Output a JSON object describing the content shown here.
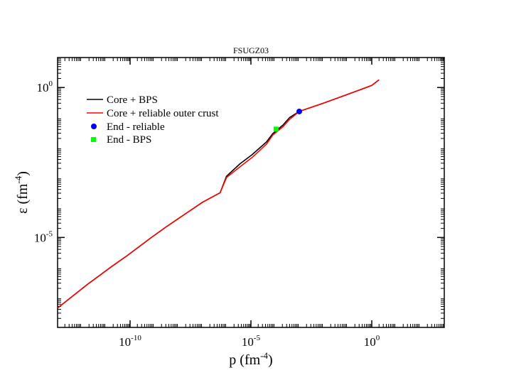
{
  "chart_data": {
    "type": "line",
    "title": "FSUGZ03",
    "xlabel": {
      "base": "p (fm",
      "exp": "-4",
      "close": ")"
    },
    "ylabel": {
      "base": "ε (fm",
      "exp": "-4",
      "close": ")"
    },
    "xscale": "log",
    "yscale": "log",
    "xlim": [
      1e-13,
      1000.0
    ],
    "ylim": [
      1e-08,
      10
    ],
    "xticks": [
      {
        "value": 1e-10,
        "base": "10",
        "exp": "-10"
      },
      {
        "value": 1e-05,
        "base": "10",
        "exp": "-5"
      },
      {
        "value": 1,
        "base": "10",
        "exp": "0"
      }
    ],
    "yticks": [
      {
        "value": 1e-05,
        "base": "10",
        "exp": "-5"
      },
      {
        "value": 1,
        "base": "10",
        "exp": "0"
      }
    ],
    "grid": false,
    "legend_position": "top-left",
    "series": [
      {
        "name": "Core + BPS",
        "color": "#000000",
        "points": [
          [
            1e-13,
            4.4e-08
          ],
          [
            1.8e-12,
            2.8e-07
          ],
          [
            1.8e-11,
            1.1e-06
          ],
          [
            8e-11,
            2.55e-06
          ],
          [
            7.1e-10,
            9.6e-06
          ],
          [
            3.2e-09,
            2.3e-05
          ],
          [
            1e-07,
            0.00015
          ],
          [
            5.3e-07,
            0.00031
          ],
          [
            9.8e-07,
            0.0011
          ],
          [
            3.6e-06,
            0.0029
          ],
          [
            1.1e-05,
            0.0057
          ],
          [
            4.4e-05,
            0.0153
          ],
          [
            8e-05,
            0.029
          ],
          [
            0.00021,
            0.056
          ],
          [
            0.0004,
            0.1
          ],
          [
            0.001,
            0.159
          ],
          [
            0.01,
            0.3
          ],
          [
            0.1,
            0.59
          ],
          [
            1.0,
            1.17
          ],
          [
            2.0,
            1.8
          ]
        ]
      },
      {
        "name": "Core + reliable outer crust",
        "color": "#ff0000",
        "points": [
          [
            1e-13,
            4.4e-08
          ],
          [
            1.8e-12,
            2.8e-07
          ],
          [
            1.8e-11,
            1.1e-06
          ],
          [
            8e-11,
            2.55e-06
          ],
          [
            7.1e-10,
            9.6e-06
          ],
          [
            3.2e-09,
            2.3e-05
          ],
          [
            1e-07,
            0.00015
          ],
          [
            5.3e-07,
            0.00031
          ],
          [
            9.8e-07,
            0.001
          ],
          [
            3.6e-06,
            0.0023
          ],
          [
            1.1e-05,
            0.0046
          ],
          [
            4.4e-05,
            0.013
          ],
          [
            8e-05,
            0.026
          ],
          [
            0.00021,
            0.049
          ],
          [
            0.0004,
            0.087
          ],
          [
            0.001,
            0.159
          ],
          [
            0.01,
            0.3
          ],
          [
            0.1,
            0.59
          ],
          [
            1.0,
            1.17
          ],
          [
            2.0,
            1.8
          ]
        ]
      }
    ],
    "markers": [
      {
        "name": "End - reliable",
        "shape": "circle",
        "color": "#0000ff",
        "x": 0.001,
        "y": 0.159
      },
      {
        "name": "End - BPS",
        "shape": "square",
        "color": "#00ff00",
        "x": 0.00011,
        "y": 0.041
      }
    ]
  }
}
